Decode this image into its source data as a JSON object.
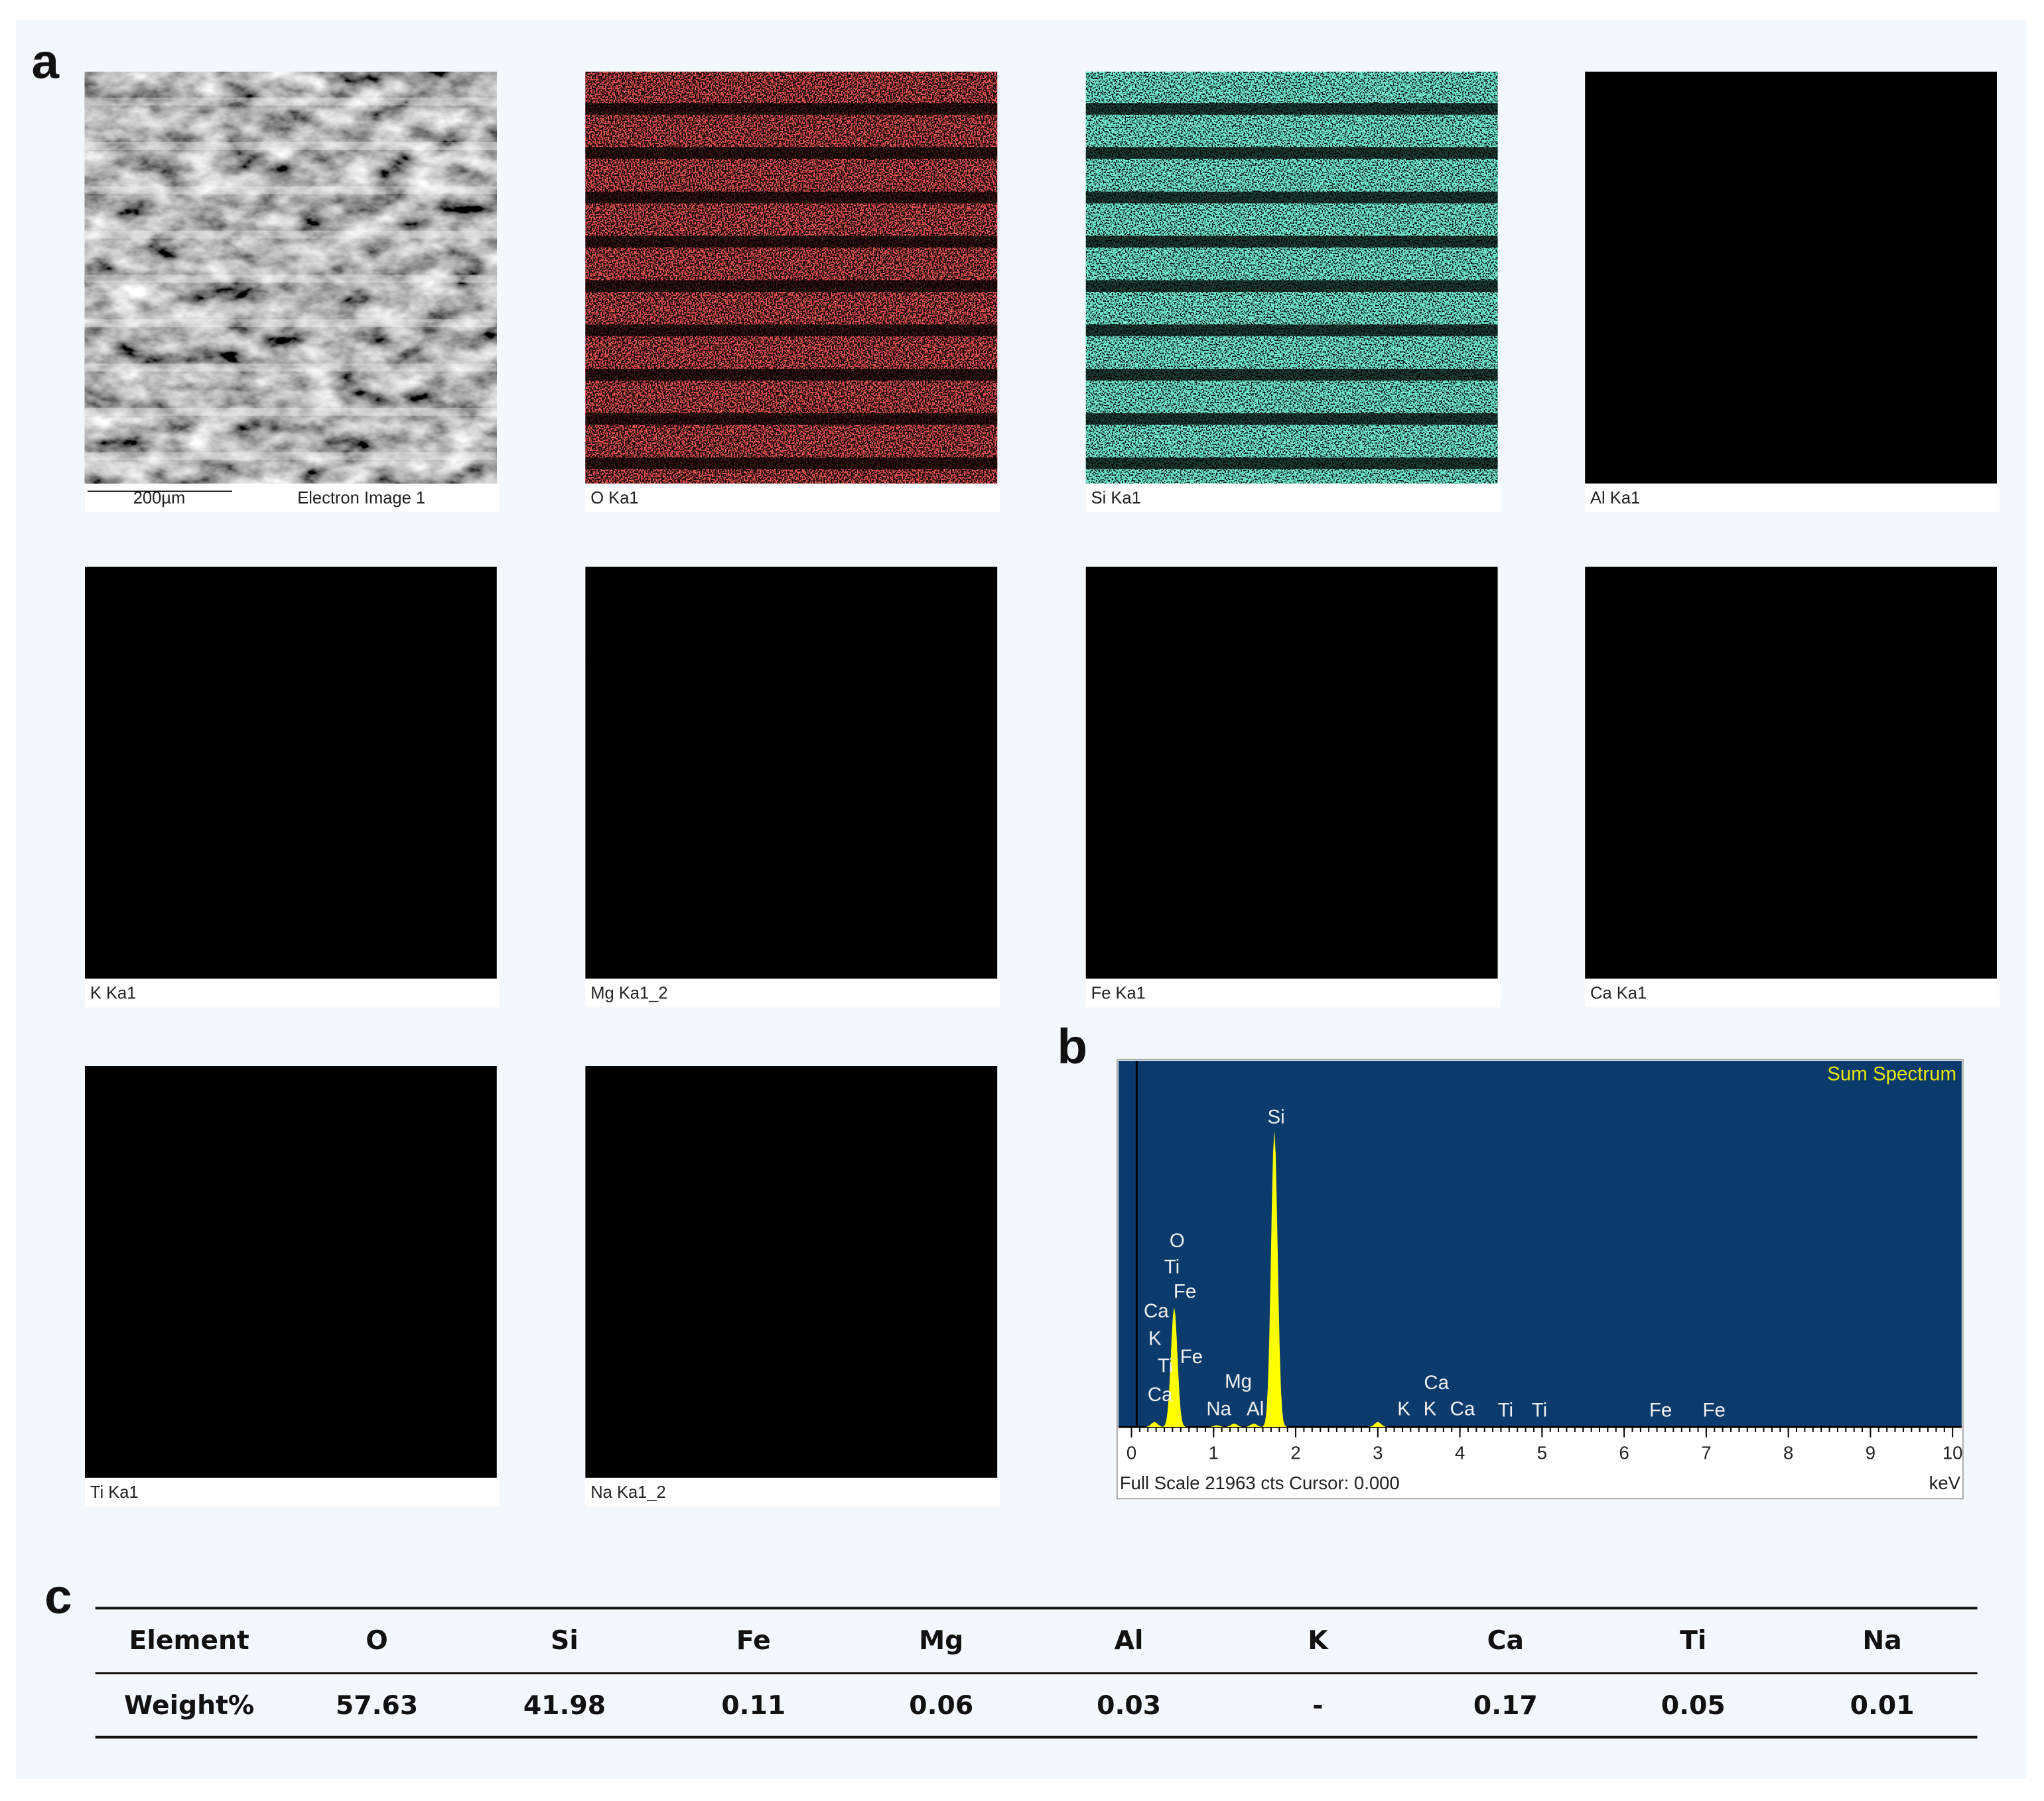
{
  "panels": {
    "a": "a",
    "b": "b",
    "c": "c"
  },
  "maps": [
    {
      "label": "Electron Image 1",
      "scale_bar": "200µm",
      "color": "#bbbbbb"
    },
    {
      "label": "O Ka1",
      "color": "#ff1a1a"
    },
    {
      "label": "Si Ka1",
      "color": "#2ee6b4"
    },
    {
      "label": "Al Ka1",
      "color": "#1fa81f"
    },
    {
      "label": "K Ka1",
      "color": "#3a3aa8"
    },
    {
      "label": "Mg Ka1_2",
      "color": "#8ab01a"
    },
    {
      "label": "Fe Ka1",
      "color": "#a0202a"
    },
    {
      "label": "Ca Ka1",
      "color": "#2424b8"
    },
    {
      "label": "Ti Ka1",
      "color": "#5a2a9a"
    },
    {
      "label": "Na Ka1_2",
      "color": "#b0401a"
    }
  ],
  "spectrum": {
    "type": "peaks",
    "title": "Sum Spectrum",
    "footer": "Full Scale 21963 cts Cursor: 0.000",
    "x_unit": "keV",
    "color": "#ffff00",
    "x": [
      0.28,
      0.52,
      1.04,
      1.25,
      1.49,
      1.74,
      3.0
    ],
    "values": [
      300,
      7200,
      100,
      200,
      200,
      17800,
      300
    ],
    "xlim": [
      0,
      10
    ],
    "ylim": [
      0,
      21963
    ],
    "xticks": [
      0,
      1,
      2,
      3,
      4,
      5,
      6,
      7,
      8,
      9,
      10
    ],
    "peak_labels": [
      "Si",
      "O",
      "Ti",
      "Fe",
      "Ca",
      "K",
      "Ti",
      "Fe",
      "Ca",
      "Mg",
      "Na",
      "Al",
      "Ca",
      "K",
      "K",
      "Ca",
      "Ti",
      "Ti",
      "Fe",
      "Fe"
    ]
  },
  "table": {
    "header": [
      "Element",
      "O",
      "Si",
      "Fe",
      "Mg",
      "Al",
      "K",
      "Ca",
      "Ti",
      "Na"
    ],
    "rows": [
      [
        "Weight%",
        57.63,
        41.98,
        0.11,
        0.06,
        0.03,
        "-",
        0.17,
        0.05,
        0.01
      ]
    ]
  }
}
